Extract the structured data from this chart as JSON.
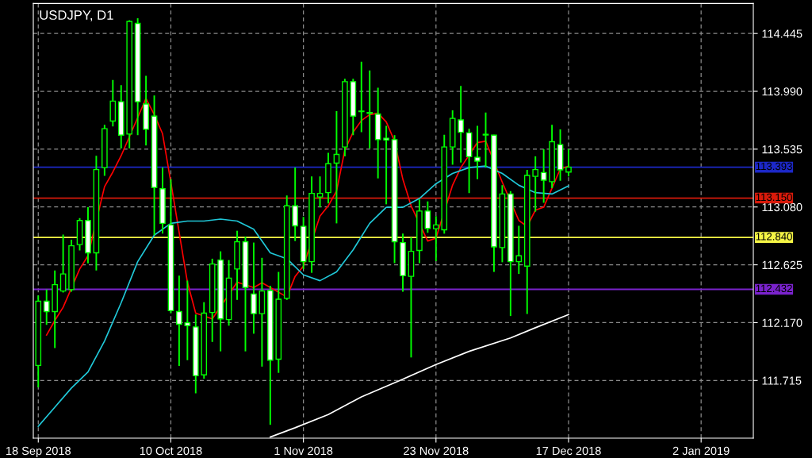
{
  "chart_data": {
    "type": "candlestick",
    "title": "USDJPY, D1",
    "categories": [
      "18 Sep 2018",
      null,
      null,
      null,
      null,
      null,
      null,
      null,
      null,
      null,
      null,
      null,
      null,
      null,
      null,
      null,
      "10 Oct 2018",
      null,
      null,
      null,
      null,
      null,
      null,
      null,
      null,
      null,
      null,
      null,
      null,
      null,
      null,
      null,
      "1 Nov 2018",
      null,
      null,
      null,
      null,
      null,
      null,
      null,
      null,
      null,
      null,
      null,
      null,
      null,
      null,
      null,
      "23 Nov 2018",
      null,
      null,
      null,
      null,
      null,
      null,
      null,
      null,
      null,
      null,
      null,
      null,
      null,
      null,
      null,
      "17 Dec 2018",
      null,
      null,
      null,
      null,
      null,
      null,
      null,
      null,
      null,
      null,
      null,
      null,
      null,
      null,
      null,
      "2 Jan 2019",
      null,
      null,
      null,
      null,
      null,
      null
    ],
    "color": "#00ff00",
    "ohlc": [
      [
        111.833,
        112.384,
        111.66,
        112.338
      ],
      [
        112.338,
        112.43,
        112.153,
        112.257
      ],
      [
        112.257,
        112.58,
        111.97,
        112.469
      ],
      [
        112.419,
        112.863,
        112.407,
        112.553
      ],
      [
        112.43,
        112.823,
        112.414,
        112.775
      ],
      [
        112.784,
        112.992,
        112.738,
        112.974
      ],
      [
        112.974,
        113.078,
        112.636,
        112.719
      ],
      [
        112.719,
        113.483,
        112.58,
        113.374
      ],
      [
        113.39,
        113.726,
        113.325,
        113.696
      ],
      [
        113.756,
        114.08,
        113.714,
        113.913
      ],
      [
        113.908,
        114.038,
        113.541,
        113.645
      ],
      [
        113.654,
        114.55,
        113.541,
        114.54
      ],
      [
        114.524,
        114.565,
        113.645,
        113.908
      ],
      [
        113.89,
        114.112,
        113.564,
        113.691
      ],
      [
        113.795,
        113.957,
        112.858,
        113.233
      ],
      [
        113.224,
        113.39,
        112.87,
        112.951
      ],
      [
        112.939,
        113.298,
        112.245,
        112.264
      ],
      [
        112.257,
        112.539,
        111.829,
        112.157
      ],
      [
        112.169,
        112.5,
        111.875,
        112.146
      ],
      [
        112.136,
        112.234,
        111.614,
        111.752
      ],
      [
        111.759,
        112.331,
        111.729,
        112.245
      ],
      [
        112.25,
        112.673,
        112.018,
        112.631
      ],
      [
        112.662,
        112.731,
        111.944,
        112.199
      ],
      [
        112.194,
        112.662,
        112.146,
        112.52
      ],
      [
        112.592,
        112.893,
        112.349,
        112.807
      ],
      [
        112.807,
        112.847,
        111.944,
        112.446
      ],
      [
        112.395,
        112.8,
        112.083,
        112.241
      ],
      [
        112.241,
        112.68,
        111.824,
        112.419
      ],
      [
        112.423,
        112.46,
        111.366,
        111.875
      ],
      [
        111.882,
        112.569,
        111.775,
        112.354
      ],
      [
        112.361,
        113.17,
        112.349,
        113.089
      ],
      [
        113.089,
        113.39,
        112.812,
        112.932
      ],
      [
        112.928,
        113.002,
        112.592,
        112.65
      ],
      [
        112.65,
        113.321,
        112.562,
        113.187
      ],
      [
        113.159,
        113.321,
        113.078,
        113.187
      ],
      [
        113.193,
        113.506,
        113.108,
        113.42
      ],
      [
        113.425,
        113.834,
        112.951,
        113.494
      ],
      [
        113.552,
        114.089,
        113.478,
        114.066
      ],
      [
        114.066,
        114.089,
        113.645,
        113.795
      ],
      [
        113.834,
        114.223,
        113.668,
        113.83
      ],
      [
        113.823,
        114.154,
        113.541,
        113.816
      ],
      [
        113.811,
        114.019,
        113.305,
        113.61
      ],
      [
        113.621,
        113.719,
        113.101,
        113.608
      ],
      [
        113.61,
        113.645,
        112.638,
        112.807
      ],
      [
        112.8,
        112.87,
        112.414,
        112.539
      ],
      [
        112.534,
        112.84,
        111.896,
        112.731
      ],
      [
        112.738,
        113.14,
        112.638,
        113.048
      ],
      [
        113.048,
        113.124,
        112.877,
        112.911
      ],
      [
        112.909,
        113.008,
        112.654,
        112.939
      ],
      [
        112.9,
        113.649,
        112.87,
        113.552
      ],
      [
        113.552,
        113.841,
        113.413,
        113.777
      ],
      [
        113.765,
        114.033,
        113.429,
        113.668
      ],
      [
        113.663,
        113.695,
        113.189,
        113.476
      ],
      [
        113.471,
        113.719,
        113.298,
        113.441
      ],
      [
        113.652,
        113.823,
        113.39,
        113.647
      ],
      [
        113.645,
        113.649,
        112.569,
        112.766
      ],
      [
        112.761,
        113.251,
        112.645,
        113.182
      ],
      [
        113.182,
        113.205,
        112.222,
        112.65
      ],
      [
        112.65,
        112.932,
        112.553,
        112.696
      ],
      [
        112.615,
        113.372,
        112.238,
        113.328
      ],
      [
        113.321,
        113.478,
        113.043,
        113.374
      ],
      [
        113.351,
        113.534,
        113.113,
        113.291
      ],
      [
        113.279,
        113.726,
        113.228,
        113.594
      ],
      [
        113.571,
        113.691,
        113.286,
        113.372
      ],
      [
        113.355,
        113.534,
        113.321,
        113.393
      ],
      null,
      null,
      null,
      null,
      null,
      null,
      null,
      null,
      null,
      null,
      null,
      null,
      null,
      null,
      null,
      null,
      null,
      null,
      null,
      null,
      null,
      null
    ],
    "series": [
      {
        "type": "line",
        "color": "#ff0000",
        "values": [
          null,
          112.072,
          112.187,
          112.291,
          null,
          112.592,
          112.696,
          null,
          113.24,
          113.355,
          113.483,
          null,
          null,
          113.934,
          113.807,
          113.656,
          113.275,
          112.881,
          112.488,
          112.245,
          null,
          112.199,
          null,
          null,
          112.488,
          null,
          112.446,
          112.483,
          null,
          null,
          112.372,
          112.534,
          112.615,
          null,
          113.008,
          113.089,
          113.205,
          113.529,
          113.668,
          113.76,
          113.807,
          113.818,
          113.749,
          113.598,
          113.298,
          113.089,
          null,
          112.812,
          112.835,
          null,
          113.251,
          113.39,
          null,
          113.587,
          113.598,
          null,
          113.275,
          null,
          112.974,
          112.927,
          113.055,
          113.078,
          113.228,
          113.379,
          113.402,
          null,
          null,
          null,
          null,
          null,
          null,
          null,
          null,
          null,
          null,
          null,
          null,
          null,
          null,
          null,
          null,
          null,
          null,
          null,
          null,
          null,
          null
        ]
      },
      {
        "type": "line",
        "color": "#20c8d8",
        "values": [
          111.354,
          null,
          111.505,
          null,
          111.655,
          null,
          111.782,
          null,
          112.025,
          null,
          112.326,
          null,
          112.65,
          null,
          112.858,
          null,
          112.951,
          null,
          112.969,
          null,
          112.969,
          null,
          112.985,
          null,
          112.969,
          null,
          112.905,
          null,
          112.719,
          null,
          112.673,
          null,
          112.546,
          null,
          112.5,
          null,
          112.569,
          null,
          112.743,
          null,
          112.951,
          null,
          113.078,
          null,
          113.078,
          null,
          113.147,
          null,
          113.263,
          null,
          113.344,
          null,
          113.39,
          null,
          113.402,
          null,
          113.344,
          null,
          113.251,
          null,
          113.193,
          null,
          113.182,
          null,
          113.247,
          null,
          null,
          null,
          null,
          null,
          null,
          null,
          null,
          null,
          null,
          null,
          null,
          null,
          null,
          null,
          null,
          null,
          null,
          null,
          null,
          null,
          null
        ]
      },
      {
        "type": "line",
        "color": "#ffffff",
        "values": [
          null,
          null,
          null,
          null,
          null,
          null,
          null,
          null,
          null,
          null,
          null,
          null,
          null,
          null,
          null,
          null,
          null,
          null,
          null,
          null,
          null,
          null,
          null,
          null,
          null,
          null,
          null,
          null,
          111.27,
          null,
          null,
          111.343,
          null,
          null,
          null,
          111.447,
          null,
          null,
          null,
          111.586,
          null,
          null,
          null,
          null,
          111.725,
          null,
          null,
          null,
          111.84,
          null,
          null,
          null,
          111.944,
          null,
          null,
          null,
          null,
          112.049,
          null,
          null,
          112.13,
          null,
          null,
          null,
          112.233,
          null,
          null,
          null,
          null,
          null,
          null,
          null,
          null,
          null,
          null,
          null,
          null,
          null,
          null,
          null,
          null,
          null,
          null,
          null,
          null,
          null,
          null
        ]
      }
    ],
    "ylim": [
      111.261,
      114.681
    ],
    "yticks": [
      111.715,
      {
        "value": 112.17,
        "label": "112.170"
      },
      112.625,
      {
        "value": 113.08,
        "label": "113.080"
      },
      113.535,
      {
        "value": 113.99,
        "label": "113.990"
      },
      114.445
    ],
    "grid": true,
    "ref_lines": [
      {
        "axis": "y",
        "value": 113.393,
        "label": "113.393",
        "color": "#1c28c8"
      },
      {
        "axis": "y",
        "value": 113.15,
        "label": "113.150",
        "color": "#d81a0a"
      },
      {
        "axis": "y",
        "value": 112.84,
        "label": "112.840",
        "color": "#f5f545"
      },
      {
        "axis": "y",
        "value": 112.432,
        "label": "112.432",
        "color": "#7a22cc"
      }
    ]
  }
}
